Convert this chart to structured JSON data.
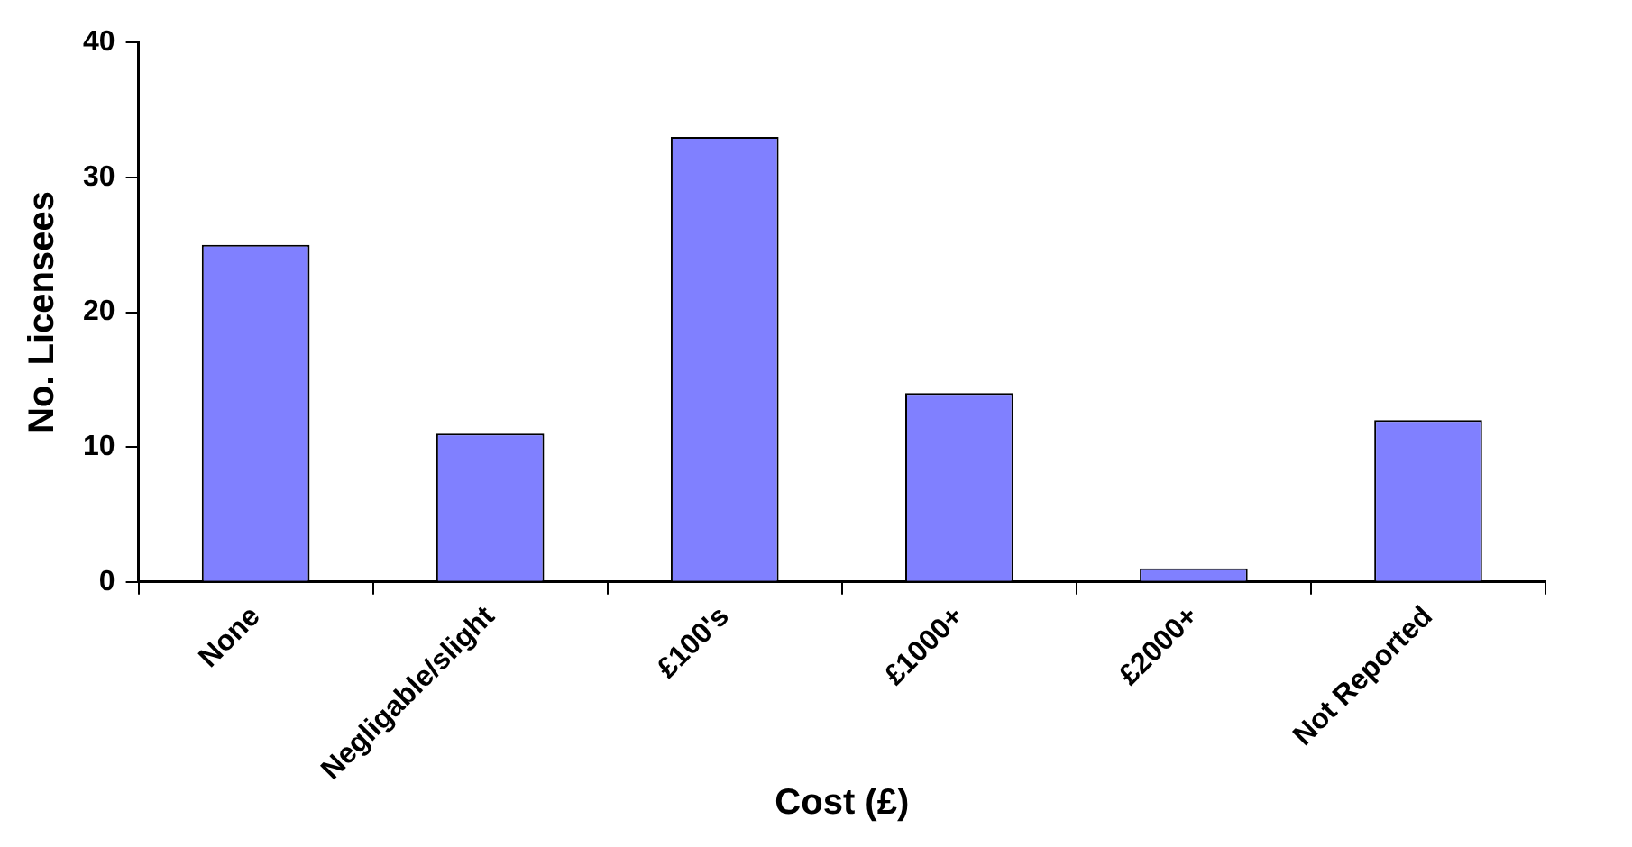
{
  "chart_data": {
    "type": "bar",
    "xlabel": "Cost (£)",
    "ylabel": "No. Licensees",
    "categories": [
      "None",
      "Negligable/slight",
      "£100's",
      "£1000+",
      "£2000+",
      "Not Reported"
    ],
    "values": [
      25,
      11,
      33,
      14,
      1,
      12
    ],
    "color": "#8080ff",
    "ylim": [
      0,
      40
    ],
    "yticks": [
      0,
      10,
      20,
      30,
      40
    ],
    "grid": false,
    "legend": false
  }
}
